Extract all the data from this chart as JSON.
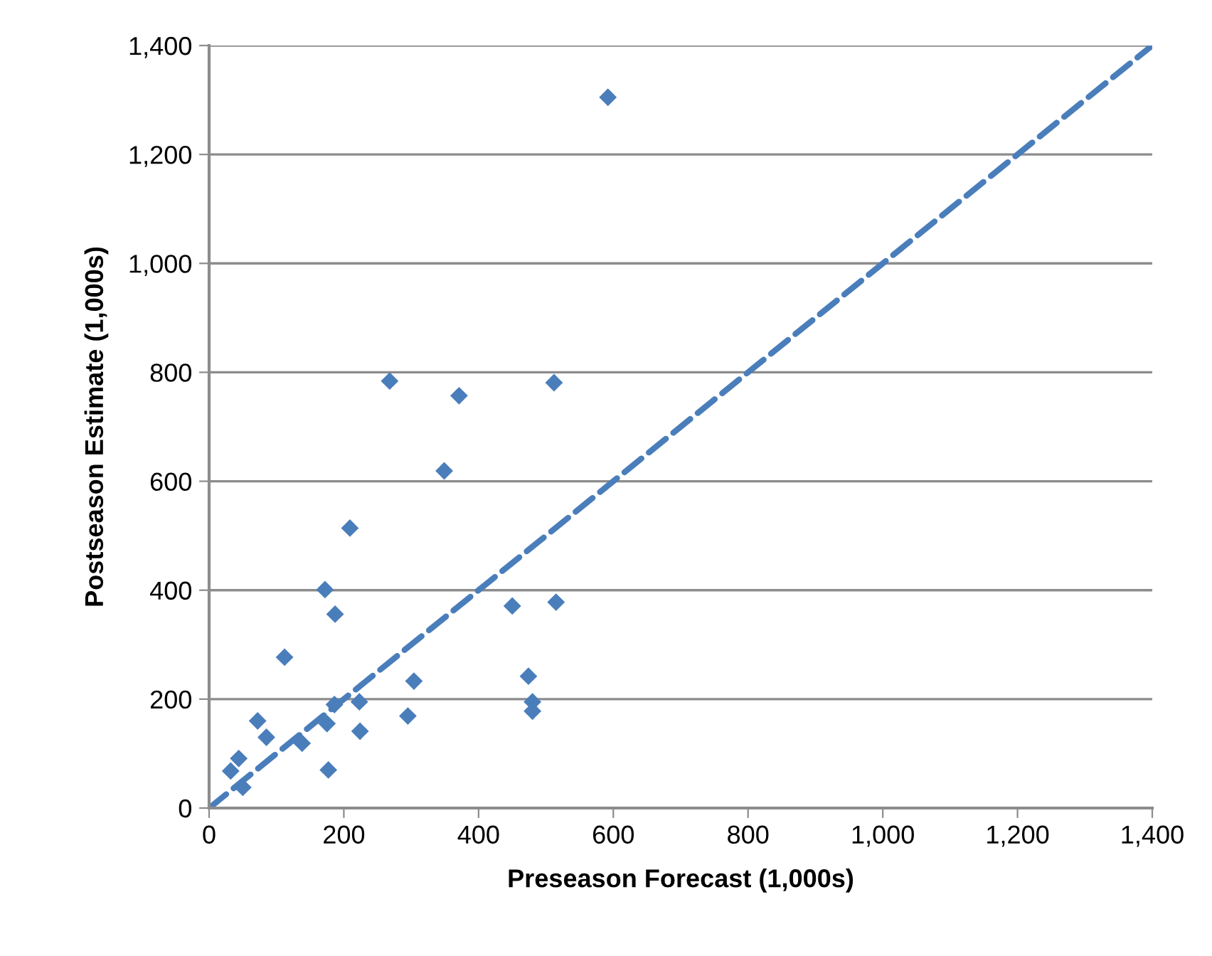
{
  "chart_data": {
    "type": "scatter",
    "xlabel": "Preseason Forecast (1,000s)",
    "ylabel": "Postseason Estimate (1,000s)",
    "xlim": [
      0,
      1400
    ],
    "ylim": [
      0,
      1400
    ],
    "xticks": [
      0,
      200,
      400,
      600,
      800,
      {
        "value": 1000,
        "label": "1,000"
      },
      {
        "value": 1200,
        "label": "1,200"
      },
      {
        "value": 1400,
        "label": "1,400"
      }
    ],
    "yticks": [
      0,
      200,
      400,
      600,
      800,
      {
        "value": 1000,
        "label": "1,000"
      },
      {
        "value": 1200,
        "label": "1,200"
      },
      {
        "value": 1400,
        "label": "1,400"
      }
    ],
    "grid": "y",
    "legend": false,
    "series": [
      {
        "color": "#4a7ebb",
        "marker": "diamond",
        "x": [
          592,
          172,
          187,
          112,
          304,
          186,
          223,
          72,
          85,
          295,
          175,
          224,
          138,
          44,
          32,
          50,
          177,
          450,
          515,
          474,
          480,
          480,
          268,
          371,
          512,
          349,
          209
        ],
        "values": [
          1305,
          401,
          356,
          277,
          233,
          190,
          195,
          160,
          130,
          169,
          155,
          141,
          119,
          91,
          68,
          38,
          70,
          371,
          378,
          242,
          195,
          178,
          784,
          757,
          781,
          619,
          514
        ]
      },
      {
        "type": "line",
        "color": "#4a7ebb",
        "line_style": "dashed",
        "marker": "none",
        "x": [
          0,
          1400
        ],
        "values": [
          0,
          1400
        ]
      }
    ]
  }
}
